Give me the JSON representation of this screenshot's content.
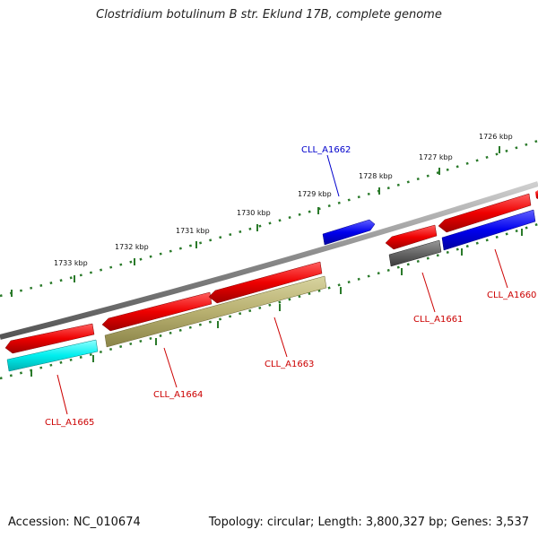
{
  "header": {
    "title": "Clostridium botulinum B str. Eklund 17B, complete genome"
  },
  "footer": {
    "accession": "Accession: NC_010674",
    "topology": "Topology: circular; Length: 3,800,327 bp; Genes: 3,537"
  },
  "scale": {
    "labels": [
      "1726 kbp",
      "1727 kbp",
      "1728 kbp",
      "1729 kbp",
      "1730 kbp",
      "1731 kbp",
      "1732 kbp",
      "1733 kbp"
    ]
  },
  "genes": [
    {
      "label": "CLL_A1662",
      "color": "#0000cc"
    },
    {
      "label": "CLL_A1660",
      "color": "#cc0000"
    },
    {
      "label": "CLL_A1661",
      "color": "#cc0000"
    },
    {
      "label": "CLL_A1663",
      "color": "#cc0000"
    },
    {
      "label": "CLL_A1664",
      "color": "#cc0000"
    },
    {
      "label": "CLL_A1665",
      "color": "#cc0000"
    }
  ],
  "colors": {
    "backbone": "#888888",
    "forward": "#ee0000",
    "reverse_blue": "#0000ee",
    "reverse_cyan": "#00eeee",
    "reverse_olive": "#b8b070",
    "reverse_grey": "#666666",
    "ticks": "#2a7a2a"
  }
}
